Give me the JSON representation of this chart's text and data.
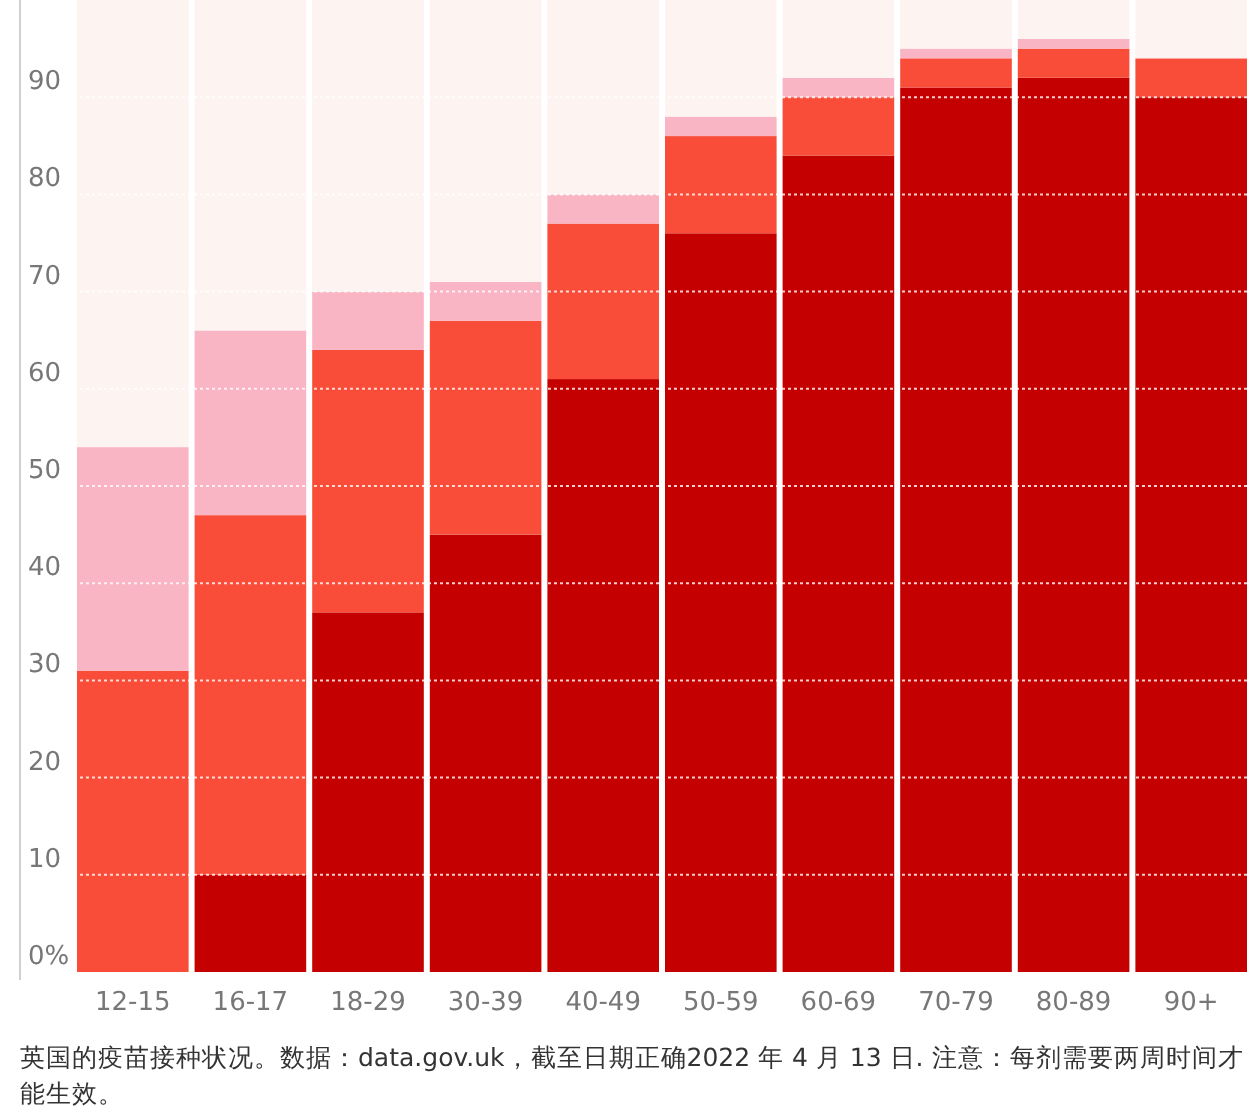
{
  "chart_data": {
    "type": "bar",
    "stacked": true,
    "categories": [
      "12-15",
      "16-17",
      "18-29",
      "30-39",
      "40-49",
      "50-59",
      "60-69",
      "70-79",
      "80-89",
      "90+"
    ],
    "series": [
      {
        "color": "#c40000",
        "values": [
          0,
          10,
          37,
          45,
          61,
          76,
          84,
          91,
          92,
          90
        ]
      },
      {
        "color": "#f94d3a",
        "values": [
          31,
          37,
          27,
          22,
          16,
          10,
          6,
          3,
          3,
          4
        ]
      },
      {
        "color": "#f9b5c4",
        "values": [
          23,
          19,
          6,
          4,
          3,
          2,
          2,
          1,
          1,
          0
        ]
      },
      {
        "color": "#fdf3f0",
        "values": [
          46,
          34,
          30,
          29,
          20,
          12,
          8,
          5,
          4,
          6
        ]
      }
    ],
    "ylim": [
      0,
      100
    ],
    "yticks": [
      {
        "value": 0,
        "label": "0%"
      },
      10,
      20,
      30,
      40,
      50,
      60,
      70,
      80,
      90
    ],
    "grid": "y",
    "annotations": [
      "英国的疫苗接种状况。数据：data.gov.uk，截至日期正确2022 年 4 月 13 日. 注意：每剂需要两周时间才能生效。"
    ]
  }
}
